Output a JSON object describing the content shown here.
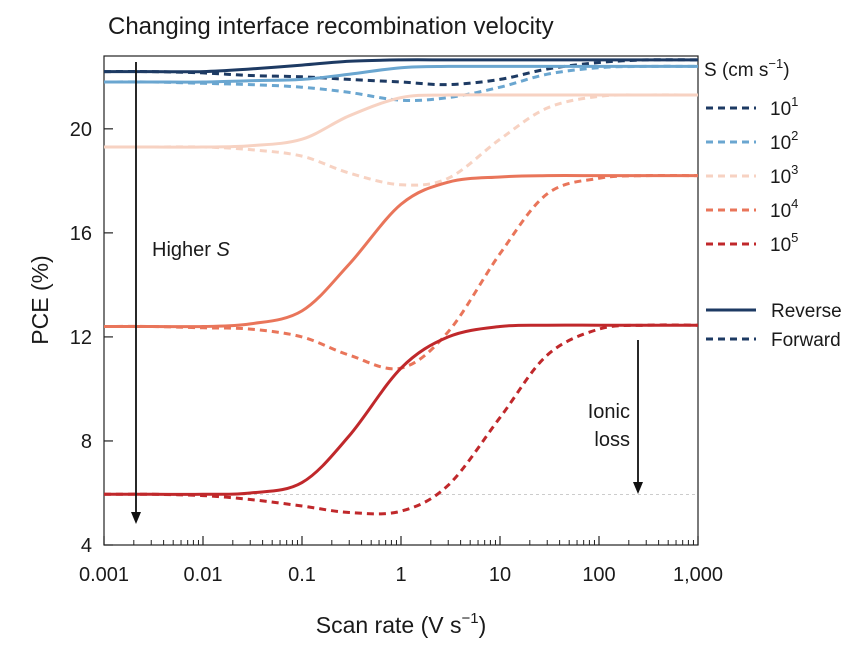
{
  "chart_data": {
    "type": "line",
    "title": "Changing interface recombination velocity",
    "xlabel": "Scan rate (V s",
    "xlabel_sup": "−1",
    "xlabel_end": ")",
    "ylabel": "PCE (%)",
    "xscale": "log",
    "xlim": [
      0.001,
      1000
    ],
    "ylim": [
      4,
      22.8
    ],
    "x_ticks": [
      0.001,
      0.01,
      0.1,
      1,
      10,
      100,
      1000
    ],
    "x_tick_labels": [
      "0.001",
      "0.01",
      "0.1",
      "1",
      "10",
      "100",
      "1,000"
    ],
    "y_ticks": [
      4,
      8,
      12,
      16,
      20
    ],
    "y_tick_labels": [
      "4",
      "8",
      "12",
      "16",
      "20"
    ],
    "legend_title": "S (cm s",
    "legend_title_sup": "−1",
    "legend_title_end": ")",
    "legend_entries": [
      {
        "base": "10",
        "exp": "1",
        "color": "#1d3a63"
      },
      {
        "base": "10",
        "exp": "2",
        "color": "#6aa6d0"
      },
      {
        "base": "10",
        "exp": "3",
        "color": "#f7d2c2"
      },
      {
        "base": "10",
        "exp": "4",
        "color": "#e9755a"
      },
      {
        "base": "10",
        "exp": "5",
        "color": "#c0282b"
      }
    ],
    "style_legend": [
      {
        "label": "Reverse",
        "dash": "solid"
      },
      {
        "label": "Forward",
        "dash": "dashed"
      }
    ],
    "annotations": {
      "higher_s": "Higher ",
      "higher_s_italic": "S",
      "ionic_loss_line1": "Ionic",
      "ionic_loss_line2": "loss"
    },
    "x": [
      0.001,
      0.003,
      0.01,
      0.03,
      0.1,
      0.3,
      1,
      3,
      10,
      30,
      100,
      300,
      1000
    ],
    "series": [
      {
        "name": "10^1 Reverse",
        "color": "#1d3a63",
        "dash": "solid",
        "values": [
          22.2,
          22.2,
          22.2,
          22.3,
          22.45,
          22.6,
          22.65,
          22.65,
          22.65,
          22.65,
          22.65,
          22.65,
          22.65
        ]
      },
      {
        "name": "10^1 Forward",
        "color": "#1d3a63",
        "dash": "dashed",
        "values": [
          22.2,
          22.2,
          22.15,
          22.05,
          22.0,
          21.9,
          21.8,
          21.7,
          21.9,
          22.3,
          22.55,
          22.65,
          22.65
        ]
      },
      {
        "name": "10^2 Reverse",
        "color": "#6aa6d0",
        "dash": "solid",
        "values": [
          21.8,
          21.8,
          21.8,
          21.85,
          21.9,
          22.1,
          22.35,
          22.4,
          22.4,
          22.4,
          22.4,
          22.4,
          22.4
        ]
      },
      {
        "name": "10^2 Forward",
        "color": "#6aa6d0",
        "dash": "dashed",
        "values": [
          21.8,
          21.8,
          21.75,
          21.7,
          21.6,
          21.4,
          21.1,
          21.2,
          21.6,
          22.1,
          22.35,
          22.4,
          22.4
        ]
      },
      {
        "name": "10^3 Reverse",
        "color": "#f7d2c2",
        "dash": "solid",
        "values": [
          19.3,
          19.3,
          19.3,
          19.35,
          19.6,
          20.5,
          21.2,
          21.3,
          21.3,
          21.3,
          21.3,
          21.3,
          21.3
        ]
      },
      {
        "name": "10^3 Forward",
        "color": "#f7d2c2",
        "dash": "dashed",
        "values": [
          19.3,
          19.3,
          19.3,
          19.2,
          18.95,
          18.3,
          17.85,
          18.1,
          19.6,
          20.8,
          21.25,
          21.3,
          21.3
        ]
      },
      {
        "name": "10^4 Reverse",
        "color": "#e9755a",
        "dash": "solid",
        "values": [
          12.4,
          12.4,
          12.4,
          12.5,
          13.0,
          14.8,
          17.1,
          17.95,
          18.15,
          18.2,
          18.2,
          18.2,
          18.2
        ]
      },
      {
        "name": "10^4 Forward",
        "color": "#e9755a",
        "dash": "dashed",
        "values": [
          12.4,
          12.4,
          12.35,
          12.3,
          12.0,
          11.3,
          10.8,
          12.2,
          15.2,
          17.5,
          18.1,
          18.2,
          18.2
        ]
      },
      {
        "name": "10^5 Reverse",
        "color": "#c0282b",
        "dash": "solid",
        "values": [
          5.95,
          5.95,
          5.95,
          6.0,
          6.4,
          8.2,
          10.8,
          12.0,
          12.4,
          12.45,
          12.45,
          12.45,
          12.45
        ]
      },
      {
        "name": "10^5 Forward",
        "color": "#c0282b",
        "dash": "dashed",
        "values": [
          5.95,
          5.95,
          5.9,
          5.75,
          5.5,
          5.25,
          5.3,
          6.3,
          8.9,
          11.3,
          12.3,
          12.45,
          12.45
        ]
      }
    ]
  }
}
